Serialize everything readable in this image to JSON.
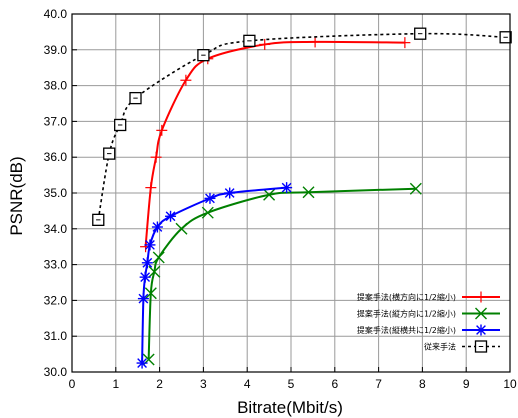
{
  "chart_data": {
    "type": "line",
    "xlabel": "Bitrate(Mbit/s)",
    "ylabel": "PSNR(dB)",
    "xlim": [
      0,
      10
    ],
    "ylim": [
      30.0,
      40.0
    ],
    "x_ticks": [
      "0",
      "1",
      "2",
      "3",
      "4",
      "5",
      "6",
      "7",
      "8",
      "9",
      "10"
    ],
    "y_ticks": [
      "30.0",
      "31.0",
      "32.0",
      "33.0",
      "34.0",
      "35.0",
      "36.0",
      "37.0",
      "38.0",
      "39.0",
      "40.0"
    ],
    "grid": true,
    "legend_position": "bottom-right",
    "series": [
      {
        "name": "提案手法(横方向に1/2縮小)",
        "color": "#ff0000",
        "marker": "plus",
        "dash": "solid",
        "x": [
          1.68,
          1.8,
          1.92,
          2.05,
          2.6,
          3.1,
          4.4,
          5.55,
          7.6
        ],
        "y": [
          33.5,
          35.15,
          36.0,
          36.75,
          38.15,
          38.75,
          39.15,
          39.22,
          39.2
        ]
      },
      {
        "name": "提案手法(縦方向に1/2縮小)",
        "color": "#008000",
        "marker": "x",
        "dash": "solid",
        "x": [
          1.75,
          1.8,
          1.88,
          1.98,
          2.5,
          3.1,
          4.5,
          5.4,
          7.85
        ],
        "y": [
          30.35,
          32.2,
          32.8,
          33.2,
          34.0,
          34.45,
          34.95,
          35.02,
          35.12
        ]
      },
      {
        "name": "提案手法(縦横共に1/2縮小)",
        "color": "#0000ff",
        "marker": "star",
        "dash": "solid",
        "x": [
          1.6,
          1.63,
          1.67,
          1.72,
          1.78,
          1.95,
          2.25,
          3.15,
          3.6,
          4.9
        ],
        "y": [
          30.25,
          32.05,
          32.65,
          33.05,
          33.55,
          34.05,
          34.35,
          34.85,
          35.0,
          35.15
        ]
      },
      {
        "name": "従来手法",
        "color": "#000000",
        "marker": "square",
        "dash": "dashed",
        "x": [
          0.6,
          0.85,
          1.1,
          1.45,
          3.0,
          4.05,
          7.95,
          9.9
        ],
        "y": [
          34.25,
          36.1,
          36.9,
          37.65,
          38.85,
          39.25,
          39.45,
          39.35
        ]
      }
    ]
  }
}
